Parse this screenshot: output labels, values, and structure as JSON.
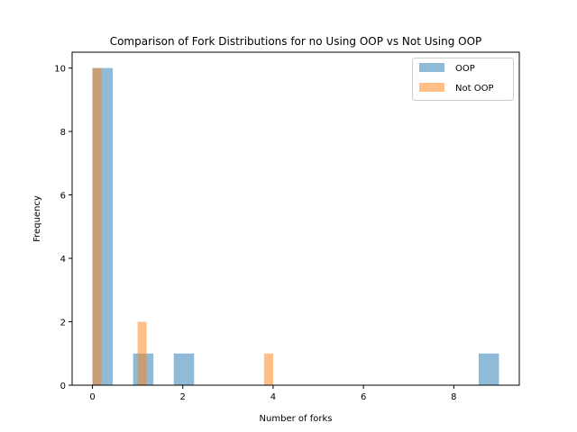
{
  "chart_data": {
    "type": "bar",
    "title": "Comparison of Fork Distributions for no Using OOP vs Not Using OOP",
    "xlabel": "Number of forks",
    "ylabel": "Frequency",
    "xlim": [
      -0.45,
      9.45
    ],
    "ylim": [
      0,
      10.5
    ],
    "xticks": [
      0,
      2,
      4,
      6,
      8
    ],
    "yticks": [
      0,
      2,
      4,
      6,
      8,
      10
    ],
    "legend_position": "top-right",
    "grid": false,
    "series": [
      {
        "name": "OOP",
        "color": "#1f77b4",
        "alpha": 0.5,
        "bins": [
          {
            "x0": 0.0,
            "x1": 0.45,
            "value": 10
          },
          {
            "x0": 0.9,
            "x1": 1.35,
            "value": 1
          },
          {
            "x0": 1.8,
            "x1": 2.25,
            "value": 1
          },
          {
            "x0": 8.55,
            "x1": 9.0,
            "value": 1
          }
        ]
      },
      {
        "name": "Not OOP",
        "color": "#ff7f0e",
        "alpha": 0.5,
        "bins": [
          {
            "x0": 0.0,
            "x1": 0.2,
            "value": 10
          },
          {
            "x0": 1.0,
            "x1": 1.2,
            "value": 2
          },
          {
            "x0": 3.8,
            "x1": 4.0,
            "value": 1
          }
        ]
      }
    ]
  }
}
